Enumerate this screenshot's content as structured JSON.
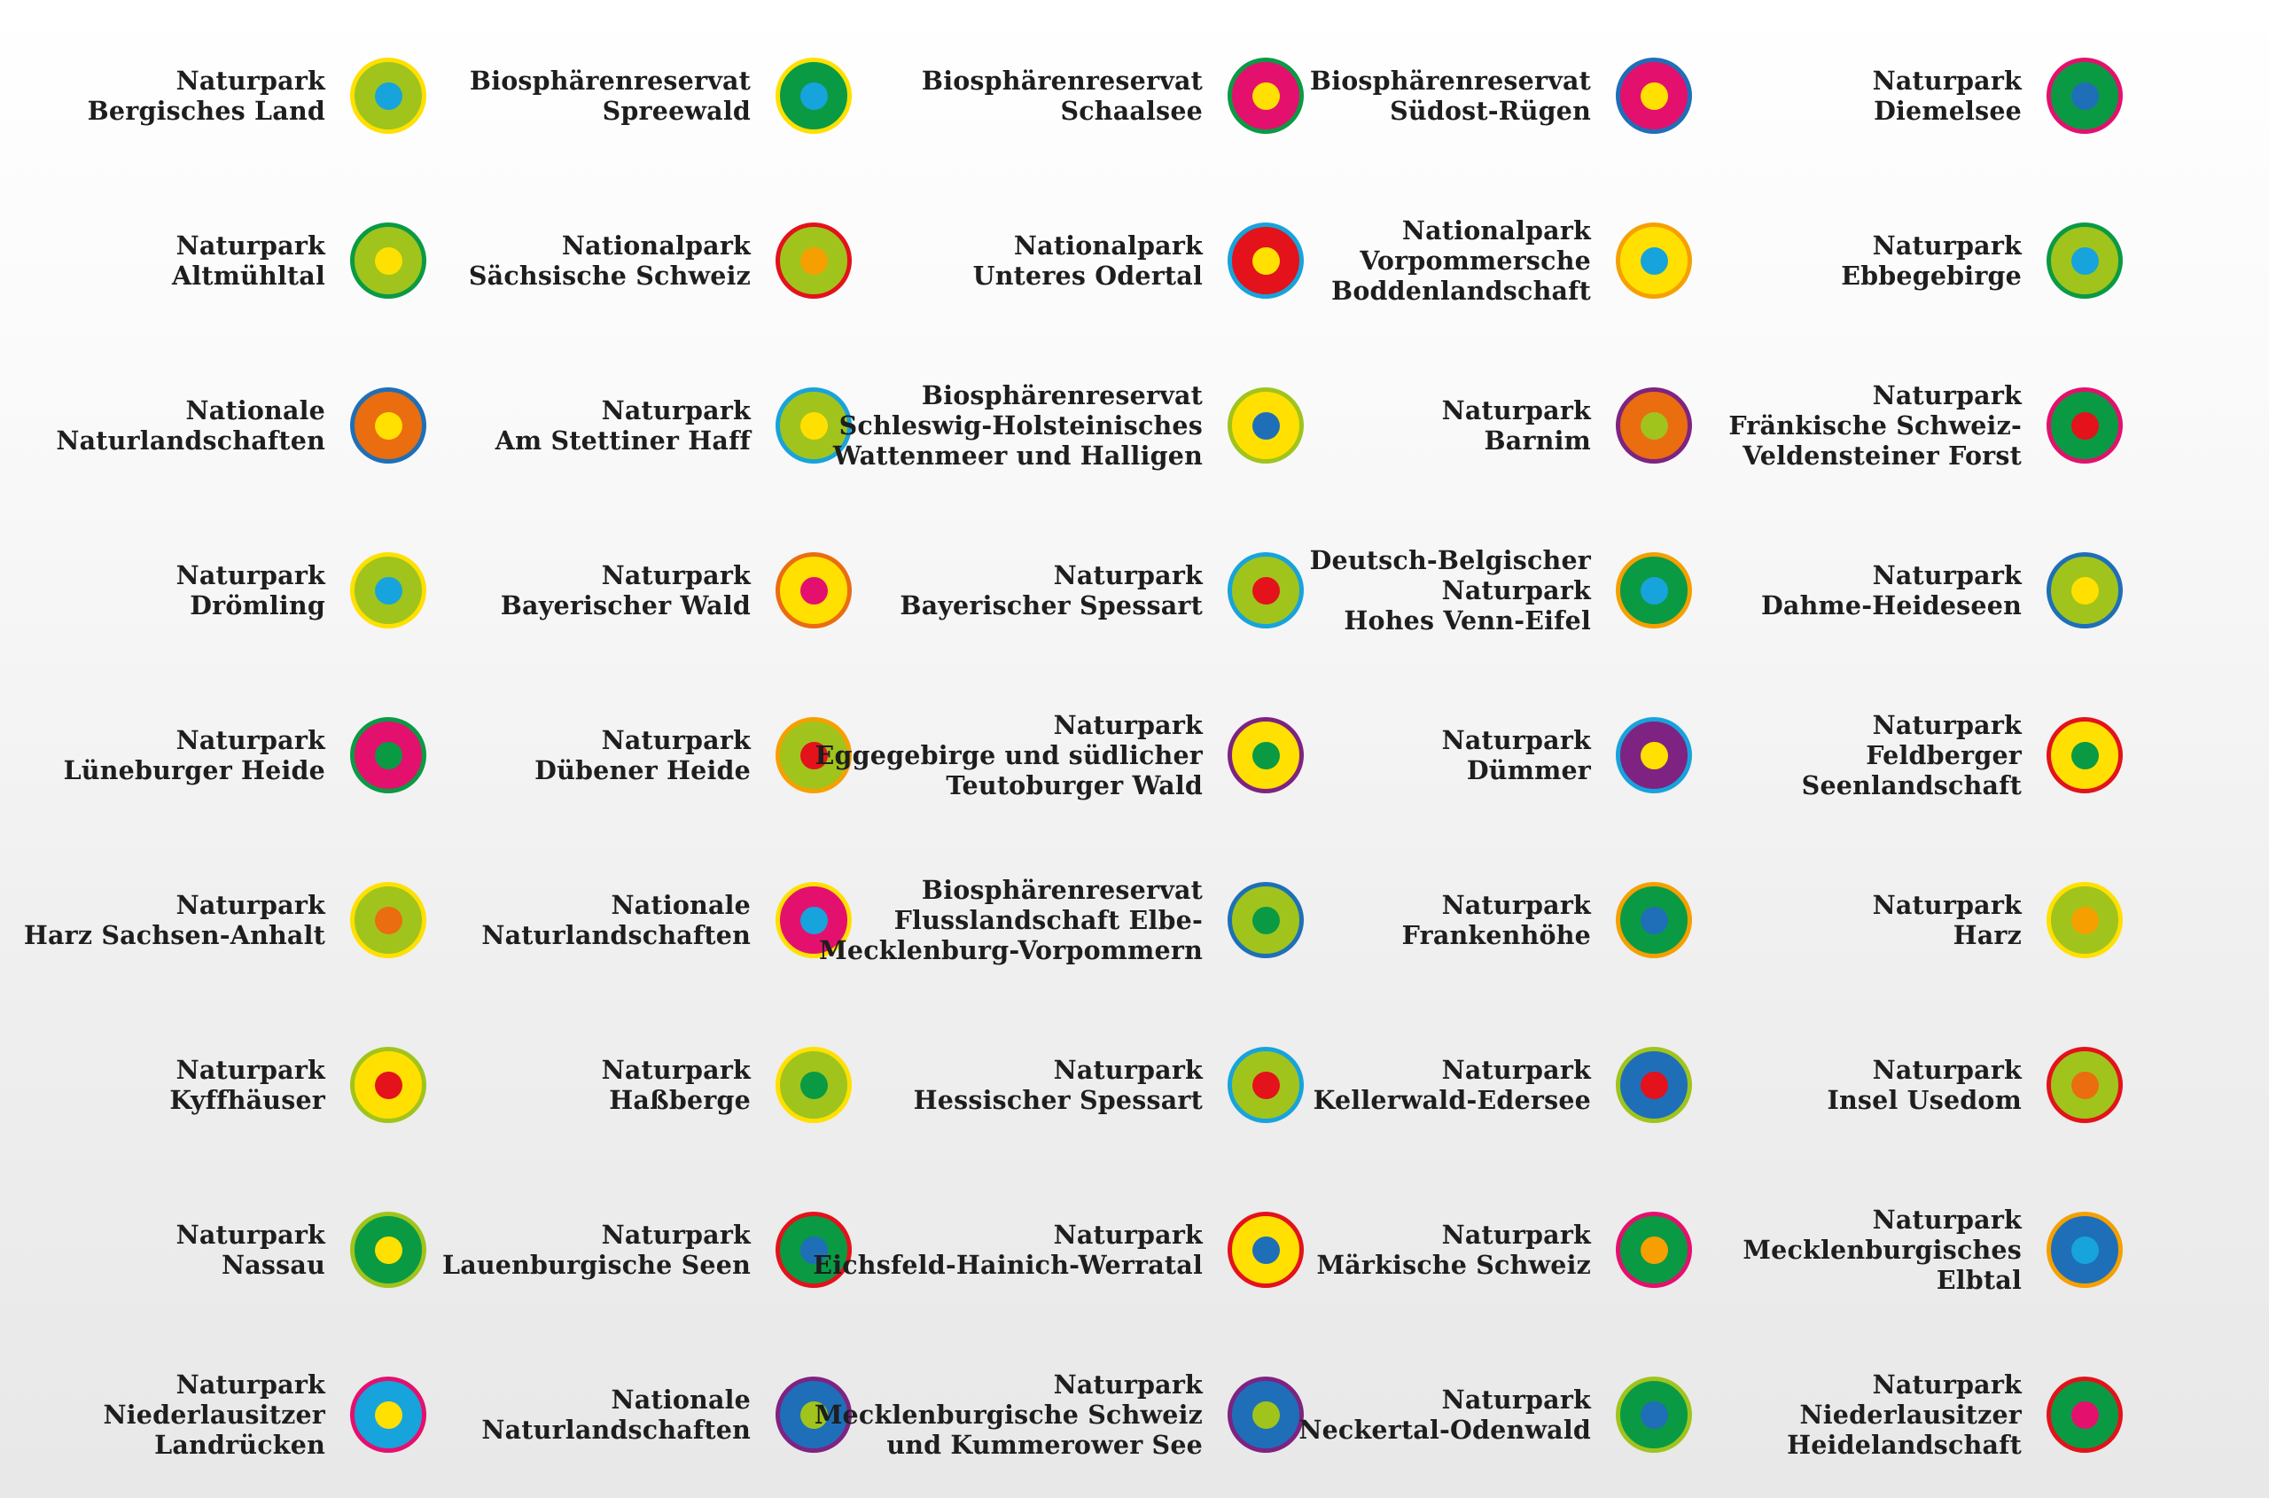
{
  "items": [
    {
      "lines": [
        "Naturpark",
        "Bergisches Land"
      ],
      "ring": "#a0c41c",
      "border": "#ffe000",
      "dot": "#17a3dc"
    },
    {
      "lines": [
        "Biosphärenreservat",
        "Spreewald"
      ],
      "ring": "#0a9a44",
      "border": "#ffe000",
      "dot": "#17a3dc"
    },
    {
      "lines": [
        "Biosphärenreservat",
        "Schaalsee"
      ],
      "ring": "#e4106e",
      "border": "#0a9a44",
      "dot": "#ffe000"
    },
    {
      "lines": [
        "Biosphärenreservat",
        "Südost-Rügen"
      ],
      "ring": "#e4106e",
      "border": "#1e6fb8",
      "dot": "#ffe000"
    },
    {
      "lines": [
        "Naturpark",
        "Diemelsee"
      ],
      "ring": "#0a9a44",
      "border": "#e4106e",
      "dot": "#1e6fb8"
    },
    {
      "lines": [
        "Naturpark",
        "Altmühltal"
      ],
      "ring": "#a0c41c",
      "border": "#0a9a44",
      "dot": "#ffe000"
    },
    {
      "lines": [
        "Nationalpark",
        "Sächsische Schweiz"
      ],
      "ring": "#a0c41c",
      "border": "#e3121b",
      "dot": "#f5a000"
    },
    {
      "lines": [
        "Nationalpark",
        "Unteres Odertal"
      ],
      "ring": "#e3121b",
      "border": "#17a3dc",
      "dot": "#ffe000"
    },
    {
      "lines": [
        "Nationalpark",
        "Vorpommersche",
        "Boddenlandschaft"
      ],
      "ring": "#ffe000",
      "border": "#f5a000",
      "dot": "#17a3dc"
    },
    {
      "lines": [
        "Naturpark",
        "Ebbegebirge"
      ],
      "ring": "#a0c41c",
      "border": "#0a9a44",
      "dot": "#17a3dc"
    },
    {
      "lines": [
        "Nationale",
        "Naturlandschaften"
      ],
      "ring": "#ea6d10",
      "border": "#1e6fb8",
      "dot": "#ffe000"
    },
    {
      "lines": [
        "Naturpark",
        "Am Stettiner Haff"
      ],
      "ring": "#a0c41c",
      "border": "#17a3dc",
      "dot": "#ffe000"
    },
    {
      "lines": [
        "Biosphärenreservat",
        "Schleswig-Holsteinisches",
        "Wattenmeer und Halligen"
      ],
      "ring": "#ffe000",
      "border": "#a0c41c",
      "dot": "#1e6fb8"
    },
    {
      "lines": [
        "Naturpark",
        "Barnim"
      ],
      "ring": "#ea6d10",
      "border": "#7e2382",
      "dot": "#a0c41c"
    },
    {
      "lines": [
        "Naturpark",
        "Fränkische Schweiz-",
        "Veldensteiner Forst"
      ],
      "ring": "#0a9a44",
      "border": "#e4106e",
      "dot": "#e3121b"
    },
    {
      "lines": [
        "Naturpark",
        "Drömling"
      ],
      "ring": "#a0c41c",
      "border": "#ffe000",
      "dot": "#17a3dc"
    },
    {
      "lines": [
        "Naturpark",
        "Bayerischer Wald"
      ],
      "ring": "#ffe000",
      "border": "#ea6d10",
      "dot": "#e4106e"
    },
    {
      "lines": [
        "Naturpark",
        "Bayerischer Spessart"
      ],
      "ring": "#a0c41c",
      "border": "#17a3dc",
      "dot": "#e3121b"
    },
    {
      "lines": [
        "Deutsch-Belgischer",
        "Naturpark",
        "Hohes Venn-Eifel"
      ],
      "ring": "#0a9a44",
      "border": "#f5a000",
      "dot": "#17a3dc"
    },
    {
      "lines": [
        "Naturpark",
        "Dahme-Heideseen"
      ],
      "ring": "#a0c41c",
      "border": "#1e6fb8",
      "dot": "#ffe000"
    },
    {
      "lines": [
        "Naturpark",
        "Lüneburger Heide"
      ],
      "ring": "#e4106e",
      "border": "#0a9a44",
      "dot": "#0a9a44"
    },
    {
      "lines": [
        "Naturpark",
        "Dübener Heide"
      ],
      "ring": "#a0c41c",
      "border": "#f5a000",
      "dot": "#e3121b"
    },
    {
      "lines": [
        "Naturpark",
        "Eggegebirge und südlicher",
        "Teutoburger Wald"
      ],
      "ring": "#ffe000",
      "border": "#7e2382",
      "dot": "#0a9a44"
    },
    {
      "lines": [
        "Naturpark",
        "Dümmer"
      ],
      "ring": "#7e2382",
      "border": "#17a3dc",
      "dot": "#ffe000"
    },
    {
      "lines": [
        "Naturpark",
        "Feldberger",
        "Seenlandschaft"
      ],
      "ring": "#ffe000",
      "border": "#e3121b",
      "dot": "#0a9a44"
    },
    {
      "lines": [
        "Naturpark",
        "Harz Sachsen-Anhalt"
      ],
      "ring": "#a0c41c",
      "border": "#ffe000",
      "dot": "#ea6d10"
    },
    {
      "lines": [
        "Nationale",
        "Naturlandschaften"
      ],
      "ring": "#e4106e",
      "border": "#ffe000",
      "dot": "#17a3dc"
    },
    {
      "lines": [
        "Biosphärenreservat",
        "Flusslandschaft Elbe-",
        "Mecklenburg-Vorpommern"
      ],
      "ring": "#a0c41c",
      "border": "#1e6fb8",
      "dot": "#0a9a44"
    },
    {
      "lines": [
        "Naturpark",
        "Frankenhöhe"
      ],
      "ring": "#0a9a44",
      "border": "#f5a000",
      "dot": "#1e6fb8"
    },
    {
      "lines": [
        "Naturpark",
        "Harz"
      ],
      "ring": "#a0c41c",
      "border": "#ffe000",
      "dot": "#f5a000"
    },
    {
      "lines": [
        "Naturpark",
        "Kyffhäuser"
      ],
      "ring": "#ffe000",
      "border": "#a0c41c",
      "dot": "#e3121b"
    },
    {
      "lines": [
        "Naturpark",
        "Haßberge"
      ],
      "ring": "#a0c41c",
      "border": "#ffe000",
      "dot": "#0a9a44"
    },
    {
      "lines": [
        "Naturpark",
        "Hessischer Spessart"
      ],
      "ring": "#a0c41c",
      "border": "#17a3dc",
      "dot": "#e3121b"
    },
    {
      "lines": [
        "Naturpark",
        "Kellerwald-Edersee"
      ],
      "ring": "#1e6fb8",
      "border": "#a0c41c",
      "dot": "#e3121b"
    },
    {
      "lines": [
        "Naturpark",
        "Insel Usedom"
      ],
      "ring": "#a0c41c",
      "border": "#e3121b",
      "dot": "#ea6d10"
    },
    {
      "lines": [
        "Naturpark",
        "Nassau"
      ],
      "ring": "#0a9a44",
      "border": "#a0c41c",
      "dot": "#ffe000"
    },
    {
      "lines": [
        "Naturpark",
        "Lauenburgische Seen"
      ],
      "ring": "#0a9a44",
      "border": "#e3121b",
      "dot": "#1e6fb8"
    },
    {
      "lines": [
        "Naturpark",
        "Eichsfeld-Hainich-Werratal"
      ],
      "ring": "#ffe000",
      "border": "#e3121b",
      "dot": "#1e6fb8"
    },
    {
      "lines": [
        "Naturpark",
        "Märkische Schweiz"
      ],
      "ring": "#0a9a44",
      "border": "#e4106e",
      "dot": "#f5a000"
    },
    {
      "lines": [
        "Naturpark",
        "Mecklenburgisches",
        "Elbtal"
      ],
      "ring": "#1e6fb8",
      "border": "#f5a000",
      "dot": "#17a3dc"
    },
    {
      "lines": [
        "Naturpark",
        "Niederlausitzer",
        "Landrücken"
      ],
      "ring": "#17a3dc",
      "border": "#e4106e",
      "dot": "#ffe000"
    },
    {
      "lines": [
        "Nationale",
        "Naturlandschaften"
      ],
      "ring": "#1e6fb8",
      "border": "#7e2382",
      "dot": "#a0c41c"
    },
    {
      "lines": [
        "Naturpark",
        "Mecklenburgische Schweiz",
        "und Kummerower See"
      ],
      "ring": "#1e6fb8",
      "border": "#7e2382",
      "dot": "#a0c41c"
    },
    {
      "lines": [
        "Naturpark",
        "Neckertal-Odenwald"
      ],
      "ring": "#0a9a44",
      "border": "#a0c41c",
      "dot": "#1e6fb8"
    },
    {
      "lines": [
        "Naturpark",
        "Niederlausitzer",
        "Heidelandschaft"
      ],
      "ring": "#0a9a44",
      "border": "#e3121b",
      "dot": "#e4106e"
    }
  ]
}
